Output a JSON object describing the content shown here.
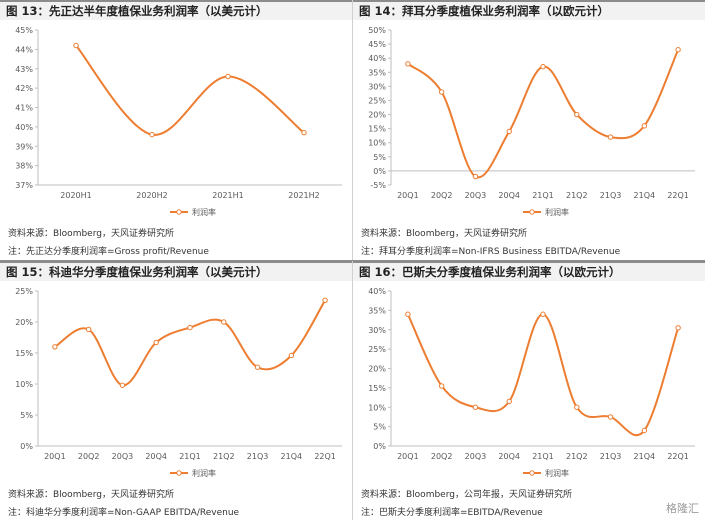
{
  "colors": {
    "line": "#ED7D31",
    "title_bg": "#f2f2f2",
    "axis": "#bfbfbf"
  },
  "panels": [
    {
      "title": "图 13：先正达半年度植保业务利润率（以美元计）",
      "source": "资料来源：Bloomberg，天风证券研究所",
      "note": "注：先正达分季度利润率=Gross profit/Revenue"
    },
    {
      "title": "图 14：拜耳分季度植保业务利润率（以欧元计）",
      "source": "资料来源：Bloomberg，天风证券研究所",
      "note": "注：拜耳分季度利润率=Non-IFRS Business EBITDA/Revenue"
    },
    {
      "title": "图 15：科迪华分季度植保业务利润率（以美元计）",
      "source": "资料来源：Bloomberg，天风证券研究所",
      "note": "注：科迪华分季度利润率=Non-GAAP EBITDA/Revenue"
    },
    {
      "title": "图 16：巴斯夫分季度植保业务利润率（以欧元计）",
      "source": "资料来源：Bloomberg，公司年报，天风证券研究所",
      "note": "注：巴斯夫分季度利润率=EBITDA/Revenue"
    }
  ],
  "chart_data": [
    {
      "type": "line",
      "categories": [
        "2020H1",
        "2020H2",
        "2021H1",
        "2021H2"
      ],
      "series": [
        {
          "name": "利润率",
          "values": [
            44.2,
            39.6,
            42.6,
            39.7
          ]
        }
      ],
      "ylim": [
        37,
        45
      ],
      "ystep": 1,
      "yticks": [
        "37%",
        "38%",
        "39%",
        "40%",
        "41%",
        "42%",
        "43%",
        "44%",
        "45%"
      ],
      "legend": "bottom"
    },
    {
      "type": "line",
      "categories": [
        "20Q1",
        "20Q2",
        "20Q3",
        "20Q4",
        "21Q1",
        "21Q2",
        "21Q3",
        "21Q4",
        "22Q1"
      ],
      "series": [
        {
          "name": "利润率",
          "values": [
            38,
            28,
            -2,
            14,
            37,
            20,
            12,
            16,
            43
          ]
        }
      ],
      "ylim": [
        -5,
        50
      ],
      "ystep": 5,
      "yticks": [
        "-5%",
        "0%",
        "5%",
        "10%",
        "15%",
        "20%",
        "25%",
        "30%",
        "35%",
        "40%",
        "45%",
        "50%"
      ],
      "legend": "bottom"
    },
    {
      "type": "line",
      "categories": [
        "20Q1",
        "20Q2",
        "20Q3",
        "20Q4",
        "21Q1",
        "21Q2",
        "21Q3",
        "21Q4",
        "22Q1"
      ],
      "series": [
        {
          "name": "利润率",
          "values": [
            16,
            18.8,
            9.8,
            16.7,
            19.1,
            20,
            12.7,
            14.6,
            23.5
          ]
        }
      ],
      "ylim": [
        0,
        25
      ],
      "ystep": 5,
      "yticks": [
        "0%",
        "5%",
        "10%",
        "15%",
        "20%",
        "25%"
      ],
      "legend": "bottom"
    },
    {
      "type": "line",
      "categories": [
        "20Q1",
        "20Q2",
        "20Q3",
        "20Q4",
        "21Q1",
        "21Q2",
        "21Q3",
        "21Q4",
        "22Q1"
      ],
      "series": [
        {
          "name": "利润率",
          "values": [
            34,
            15.5,
            10,
            11.5,
            34,
            10,
            7.5,
            4,
            30.5
          ]
        }
      ],
      "ylim": [
        0,
        40
      ],
      "ystep": 5,
      "yticks": [
        "0%",
        "5%",
        "10%",
        "15%",
        "20%",
        "25%",
        "30%",
        "35%",
        "40%"
      ],
      "legend": "bottom"
    }
  ],
  "watermark": "格隆汇"
}
